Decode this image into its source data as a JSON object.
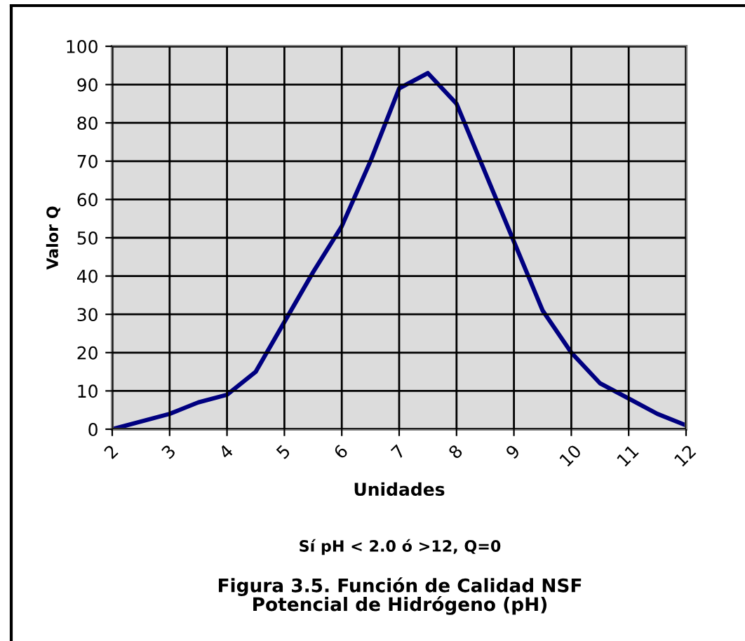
{
  "chart_data": {
    "type": "line",
    "xlabel": "Unidades",
    "ylabel": "Valor Q",
    "x": [
      2,
      3,
      3.5,
      4,
      4.5,
      5,
      5.5,
      6,
      6.5,
      7,
      7.5,
      8,
      8.5,
      9,
      9.5,
      10,
      10.5,
      11,
      11.5,
      12
    ],
    "series": [
      {
        "color": "#000080",
        "values": [
          0,
          4,
          7,
          9,
          15,
          28,
          41,
          53,
          70,
          89,
          93,
          85,
          67,
          49,
          31,
          20,
          12,
          8,
          4,
          1
        ]
      }
    ],
    "xlim": [
      2,
      12
    ],
    "xticks": [
      2,
      3,
      4,
      5,
      6,
      7,
      8,
      9,
      10,
      11,
      12
    ],
    "ylim": [
      0,
      100
    ],
    "yticks": [
      0,
      10,
      20,
      30,
      40,
      50,
      60,
      70,
      80,
      90,
      100
    ],
    "grid": true,
    "annotations": [
      "Sí pH < 2.0 ó >12, Q=0",
      "Figura 3.5. Función de Calidad NSF\nPotencial de Hidrógeno (pH)"
    ]
  }
}
